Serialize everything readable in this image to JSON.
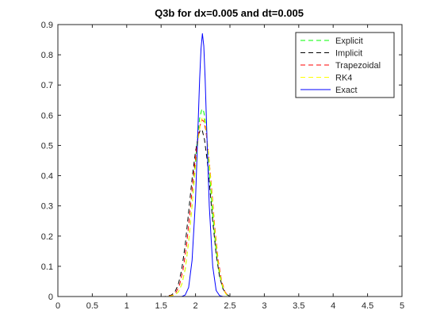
{
  "chart_data": {
    "type": "line",
    "title": "Q3b for dx=0.005 and dt=0.005",
    "xlabel": "",
    "ylabel": "",
    "xlim": [
      0,
      5
    ],
    "ylim": [
      0,
      0.9
    ],
    "xticks": [
      "0",
      "0.5",
      "1",
      "1.5",
      "2",
      "2.5",
      "3",
      "3.5",
      "4",
      "4.5",
      "5"
    ],
    "yticks": [
      "0",
      "0.1",
      "0.2",
      "0.3",
      "0.4",
      "0.5",
      "0.6",
      "0.7",
      "0.8",
      "0.9"
    ],
    "grid": false,
    "legend_position": "top-right",
    "series": [
      {
        "name": "Explicit",
        "color": "#00ff00",
        "dash": "dashed",
        "x": [
          0,
          1.6,
          1.7,
          1.75,
          1.8,
          1.85,
          1.9,
          1.95,
          2.0,
          2.03,
          2.06,
          2.09,
          2.11,
          2.13,
          2.16,
          2.2,
          2.25,
          2.3,
          2.35,
          2.4,
          2.45,
          2.5,
          5
        ],
        "y": [
          0,
          0,
          0.005,
          0.015,
          0.04,
          0.09,
          0.18,
          0.3,
          0.45,
          0.53,
          0.59,
          0.618,
          0.62,
          0.6,
          0.54,
          0.42,
          0.27,
          0.15,
          0.07,
          0.025,
          0.006,
          0,
          0
        ]
      },
      {
        "name": "Implicit",
        "color": "#000000",
        "dash": "dashed",
        "x": [
          0,
          1.55,
          1.65,
          1.7,
          1.75,
          1.8,
          1.85,
          1.9,
          1.95,
          2.0,
          2.04,
          2.07,
          2.1,
          2.13,
          2.17,
          2.2,
          2.25,
          2.3,
          2.35,
          2.4,
          2.45,
          2.5,
          5
        ],
        "y": [
          0,
          0,
          0.005,
          0.015,
          0.04,
          0.09,
          0.17,
          0.28,
          0.39,
          0.48,
          0.53,
          0.553,
          0.548,
          0.52,
          0.45,
          0.38,
          0.25,
          0.14,
          0.065,
          0.025,
          0.008,
          0,
          0
        ]
      },
      {
        "name": "Trapezoidal",
        "color": "#ff0000",
        "dash": "dashed",
        "x": [
          0,
          1.58,
          1.68,
          1.72,
          1.77,
          1.82,
          1.87,
          1.92,
          1.97,
          2.02,
          2.06,
          2.09,
          2.12,
          2.15,
          2.19,
          2.23,
          2.28,
          2.33,
          2.38,
          2.43,
          2.48,
          5
        ],
        "y": [
          0,
          0,
          0.005,
          0.015,
          0.04,
          0.09,
          0.17,
          0.28,
          0.4,
          0.5,
          0.56,
          0.585,
          0.58,
          0.55,
          0.47,
          0.37,
          0.23,
          0.12,
          0.05,
          0.015,
          0,
          0
        ]
      },
      {
        "name": "RK4",
        "color": "#ffff00",
        "dash": "dashed",
        "x": [
          0,
          1.6,
          1.7,
          1.75,
          1.8,
          1.85,
          1.9,
          1.95,
          2.0,
          2.04,
          2.07,
          2.1,
          2.12,
          2.15,
          2.19,
          2.23,
          2.28,
          2.33,
          2.38,
          2.43,
          2.48,
          5
        ],
        "y": [
          0,
          0,
          0.005,
          0.015,
          0.04,
          0.09,
          0.18,
          0.3,
          0.43,
          0.52,
          0.57,
          0.595,
          0.59,
          0.56,
          0.47,
          0.36,
          0.22,
          0.11,
          0.045,
          0.012,
          0,
          0
        ]
      },
      {
        "name": "Exact",
        "color": "#0000ff",
        "dash": "solid",
        "x": [
          0,
          1.8,
          1.85,
          1.9,
          1.95,
          2.0,
          2.03,
          2.06,
          2.08,
          2.1,
          2.12,
          2.14,
          2.17,
          2.2,
          2.25,
          2.3,
          2.35,
          2.4,
          5
        ],
        "y": [
          0,
          0,
          0.005,
          0.03,
          0.12,
          0.32,
          0.52,
          0.72,
          0.82,
          0.87,
          0.83,
          0.72,
          0.5,
          0.3,
          0.1,
          0.02,
          0.003,
          0,
          0
        ]
      }
    ]
  }
}
